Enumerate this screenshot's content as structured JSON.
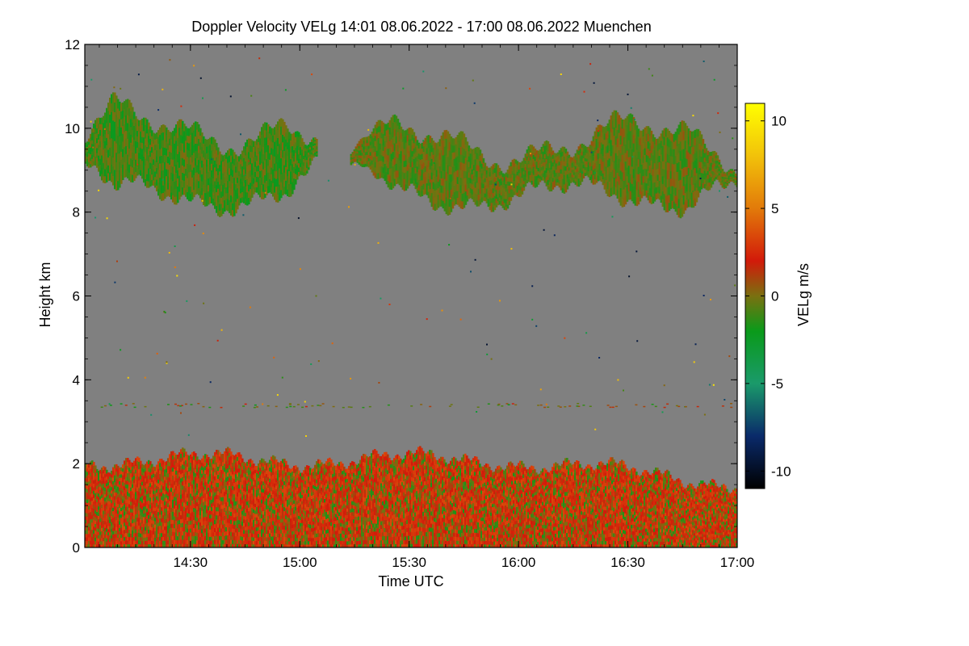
{
  "chart_data": {
    "type": "heatmap",
    "title": "Doppler Velocity VELg   14:01 08.06.2022 - 17:00 08.06.2022 Muenchen",
    "xlabel": "Time UTC",
    "ylabel": "Height km",
    "colorbar_label": "VELg m/s",
    "xlim_hours": [
      14.017,
      17.0
    ],
    "ylim": [
      0,
      12
    ],
    "x_ticks": [
      {
        "value": 14.5,
        "label": "14:30"
      },
      {
        "value": 15.0,
        "label": "15:00"
      },
      {
        "value": 15.5,
        "label": "15:30"
      },
      {
        "value": 16.0,
        "label": "16:00"
      },
      {
        "value": 16.5,
        "label": "16:30"
      },
      {
        "value": 17.0,
        "label": "17:00"
      }
    ],
    "y_ticks": [
      {
        "value": 0,
        "label": "0"
      },
      {
        "value": 2,
        "label": "2"
      },
      {
        "value": 4,
        "label": "4"
      },
      {
        "value": 6,
        "label": "6"
      },
      {
        "value": 8,
        "label": "8"
      },
      {
        "value": 10,
        "label": "10"
      },
      {
        "value": 12,
        "label": "12"
      }
    ],
    "colorbar": {
      "range": [
        -11,
        11
      ],
      "ticks": [
        {
          "value": 10,
          "label": "10"
        },
        {
          "value": 5,
          "label": "5"
        },
        {
          "value": 0,
          "label": "0"
        },
        {
          "value": -5,
          "label": "-5"
        },
        {
          "value": -10,
          "label": "-10"
        }
      ],
      "stops": [
        {
          "value": -11,
          "color": "#000000"
        },
        {
          "value": -8,
          "color": "#0a2a6a"
        },
        {
          "value": -5,
          "color": "#1a9a6a"
        },
        {
          "value": -2,
          "color": "#0a9a1a"
        },
        {
          "value": 0,
          "color": "#7a7010"
        },
        {
          "value": 2,
          "color": "#d21a0a"
        },
        {
          "value": 5,
          "color": "#e27a0a"
        },
        {
          "value": 8,
          "color": "#f2c20a"
        },
        {
          "value": 11,
          "color": "#ffff00"
        }
      ]
    },
    "background_color": "#808080",
    "regions": [
      {
        "name": "cirrus-layer-1",
        "t_start": 14.017,
        "t_end": 15.08,
        "z_bottom": 8.0,
        "z_top": 10.7,
        "dominant_velocity": -1
      },
      {
        "name": "cirrus-layer-2",
        "t_start": 15.23,
        "t_end": 17.0,
        "z_bottom": 8.0,
        "z_top": 10.3,
        "dominant_velocity": -0.5
      },
      {
        "name": "boundary-layer",
        "t_start": 14.017,
        "t_end": 17.0,
        "z_bottom": 0.0,
        "z_top": 2.3,
        "dominant_velocity": 0.5
      }
    ]
  }
}
